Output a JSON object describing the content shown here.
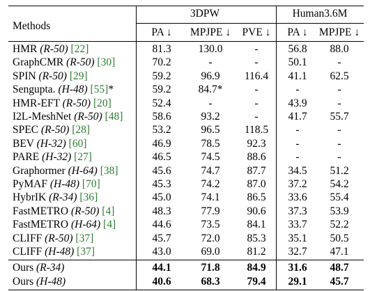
{
  "header": {
    "methods": "Methods",
    "group1": "3DPW",
    "group2": "Human3.6M",
    "columns": [
      "PA ↓",
      "MPJPE ↓",
      "PVE ↓",
      "PA ↓",
      "MPJPE ↓"
    ]
  },
  "rows": [
    {
      "name": "HMR",
      "backbone": "(R-50)",
      "ref": "[22]",
      "suffix": "",
      "values": [
        "81.3",
        "130.0",
        "-",
        "56.8",
        "88.0"
      ]
    },
    {
      "name": "GraphCMR",
      "backbone": "(R-50)",
      "ref": "[30]",
      "suffix": "",
      "values": [
        "70.2",
        "-",
        "-",
        "50.1",
        "-"
      ]
    },
    {
      "name": "SPIN",
      "backbone": "(R-50)",
      "ref": "[29]",
      "suffix": "",
      "values": [
        "59.2",
        "96.9",
        "116.4",
        "41.1",
        "62.5"
      ]
    },
    {
      "name": "Sengupta.",
      "backbone": "(H-48)",
      "ref": "[55]",
      "suffix": "*",
      "values": [
        "59.2",
        "84.7*",
        "-",
        "-",
        "-"
      ]
    },
    {
      "name": "HMR-EFT",
      "backbone": "(R-50)",
      "ref": "[20]",
      "suffix": "",
      "values": [
        "52.4",
        "-",
        "-",
        "43.9",
        "-"
      ]
    },
    {
      "name": "I2L-MeshNet",
      "backbone": "(R-50)",
      "ref": "[48]",
      "suffix": "",
      "values": [
        "58.6",
        "93.2",
        "-",
        "41.7",
        "55.7"
      ]
    },
    {
      "name": "SPEC",
      "backbone": "(R-50)",
      "ref": "[28]",
      "suffix": "",
      "values": [
        "53.2",
        "96.5",
        "118.5",
        "-",
        "-"
      ]
    },
    {
      "name": "BEV",
      "backbone": "(H-32)",
      "ref": "[60]",
      "suffix": "",
      "values": [
        "46.9",
        "78.5",
        "92.3",
        "-",
        "-"
      ]
    },
    {
      "name": "PARE",
      "backbone": "(H-32)",
      "ref": "[27]",
      "suffix": "",
      "values": [
        "46.5",
        "74.5",
        "88.6",
        "-",
        "-"
      ]
    },
    {
      "name": "Graphormer",
      "backbone": "(H-64)",
      "ref": "[38]",
      "suffix": "",
      "values": [
        "45.6",
        "74.7",
        "87.7",
        "34.5",
        "51.2"
      ]
    },
    {
      "name": "PyMAF",
      "backbone": "(H-48)",
      "ref": "[70]",
      "suffix": "",
      "values": [
        "45.3",
        "74.2",
        "87.0",
        "37.2",
        "54.2"
      ]
    },
    {
      "name": "HybrIK",
      "backbone": "(R-34)",
      "ref": "[36]",
      "suffix": "",
      "values": [
        "45.0",
        "74.1",
        "86.5",
        "33.6",
        "55.4"
      ]
    },
    {
      "name": "FastMETRO",
      "backbone": "(R-50)",
      "ref": "[4]",
      "suffix": "",
      "values": [
        "48.3",
        "77.9",
        "90.6",
        "37.3",
        "53.9"
      ]
    },
    {
      "name": "FastMETRO",
      "backbone": "(H-64)",
      "ref": "[4]",
      "suffix": "",
      "values": [
        "44.6",
        "73.5",
        "84.1",
        "33.7",
        "52.2"
      ]
    },
    {
      "name": "CLIFF",
      "backbone": "(R-50)",
      "ref": "[37]",
      "suffix": "",
      "values": [
        "45.7",
        "72.0",
        "85.3",
        "35.1",
        "50.5"
      ]
    },
    {
      "name": "CLIFF",
      "backbone": "(H-48)",
      "ref": "[37]",
      "suffix": "",
      "values": [
        "43.0",
        "69.0",
        "81.2",
        "32.7",
        "47.1"
      ]
    }
  ],
  "ours": [
    {
      "name": "Ours",
      "backbone": "(R-34)",
      "values": [
        "44.1",
        "71.8",
        "84.9",
        "31.6",
        "48.7"
      ]
    },
    {
      "name": "Ours",
      "backbone": "(H-48)",
      "values": [
        "40.6",
        "68.3",
        "79.4",
        "29.1",
        "45.7"
      ]
    }
  ],
  "colors": {
    "reference": "#2e7d32"
  }
}
